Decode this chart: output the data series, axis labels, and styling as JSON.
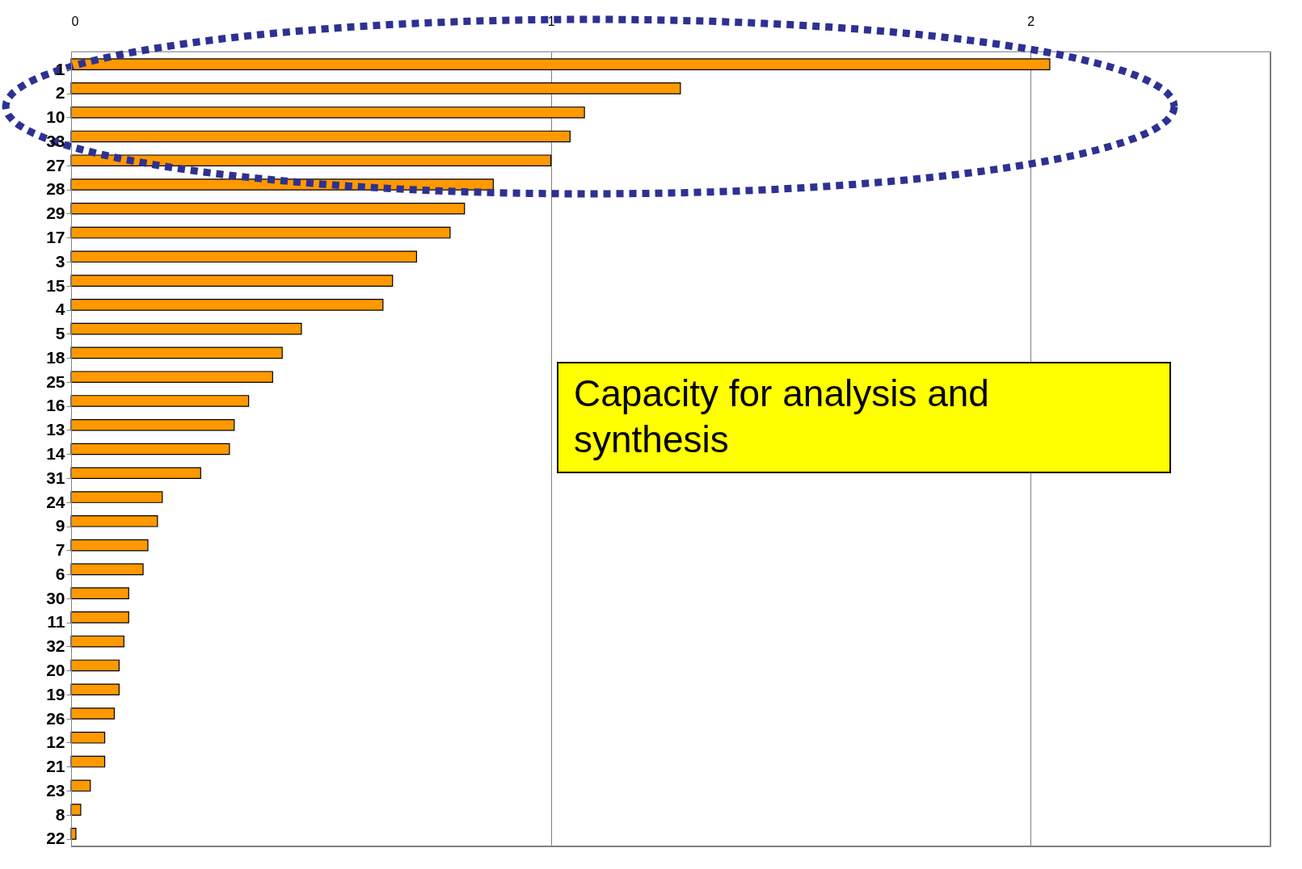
{
  "chart_data": {
    "type": "bar",
    "orientation": "horizontal",
    "categories": [
      "1",
      "2",
      "10",
      "33",
      "27",
      "28",
      "29",
      "17",
      "3",
      "15",
      "4",
      "5",
      "18",
      "25",
      "16",
      "13",
      "14",
      "31",
      "24",
      "9",
      "7",
      "6",
      "30",
      "11",
      "32",
      "20",
      "19",
      "26",
      "12",
      "21",
      "23",
      "8",
      "22"
    ],
    "values": [
      2.04,
      1.27,
      1.07,
      1.04,
      1.0,
      0.88,
      0.82,
      0.79,
      0.72,
      0.67,
      0.65,
      0.48,
      0.44,
      0.42,
      0.37,
      0.34,
      0.33,
      0.27,
      0.19,
      0.18,
      0.16,
      0.15,
      0.12,
      0.12,
      0.11,
      0.1,
      0.1,
      0.09,
      0.07,
      0.07,
      0.04,
      0.02,
      0.01
    ],
    "color": "#ff9900",
    "xlim": [
      0,
      2.5
    ],
    "xticks": [
      0,
      1,
      2
    ],
    "grid": "x",
    "annotations": [
      "Capacity for analysis and synthesis"
    ]
  }
}
